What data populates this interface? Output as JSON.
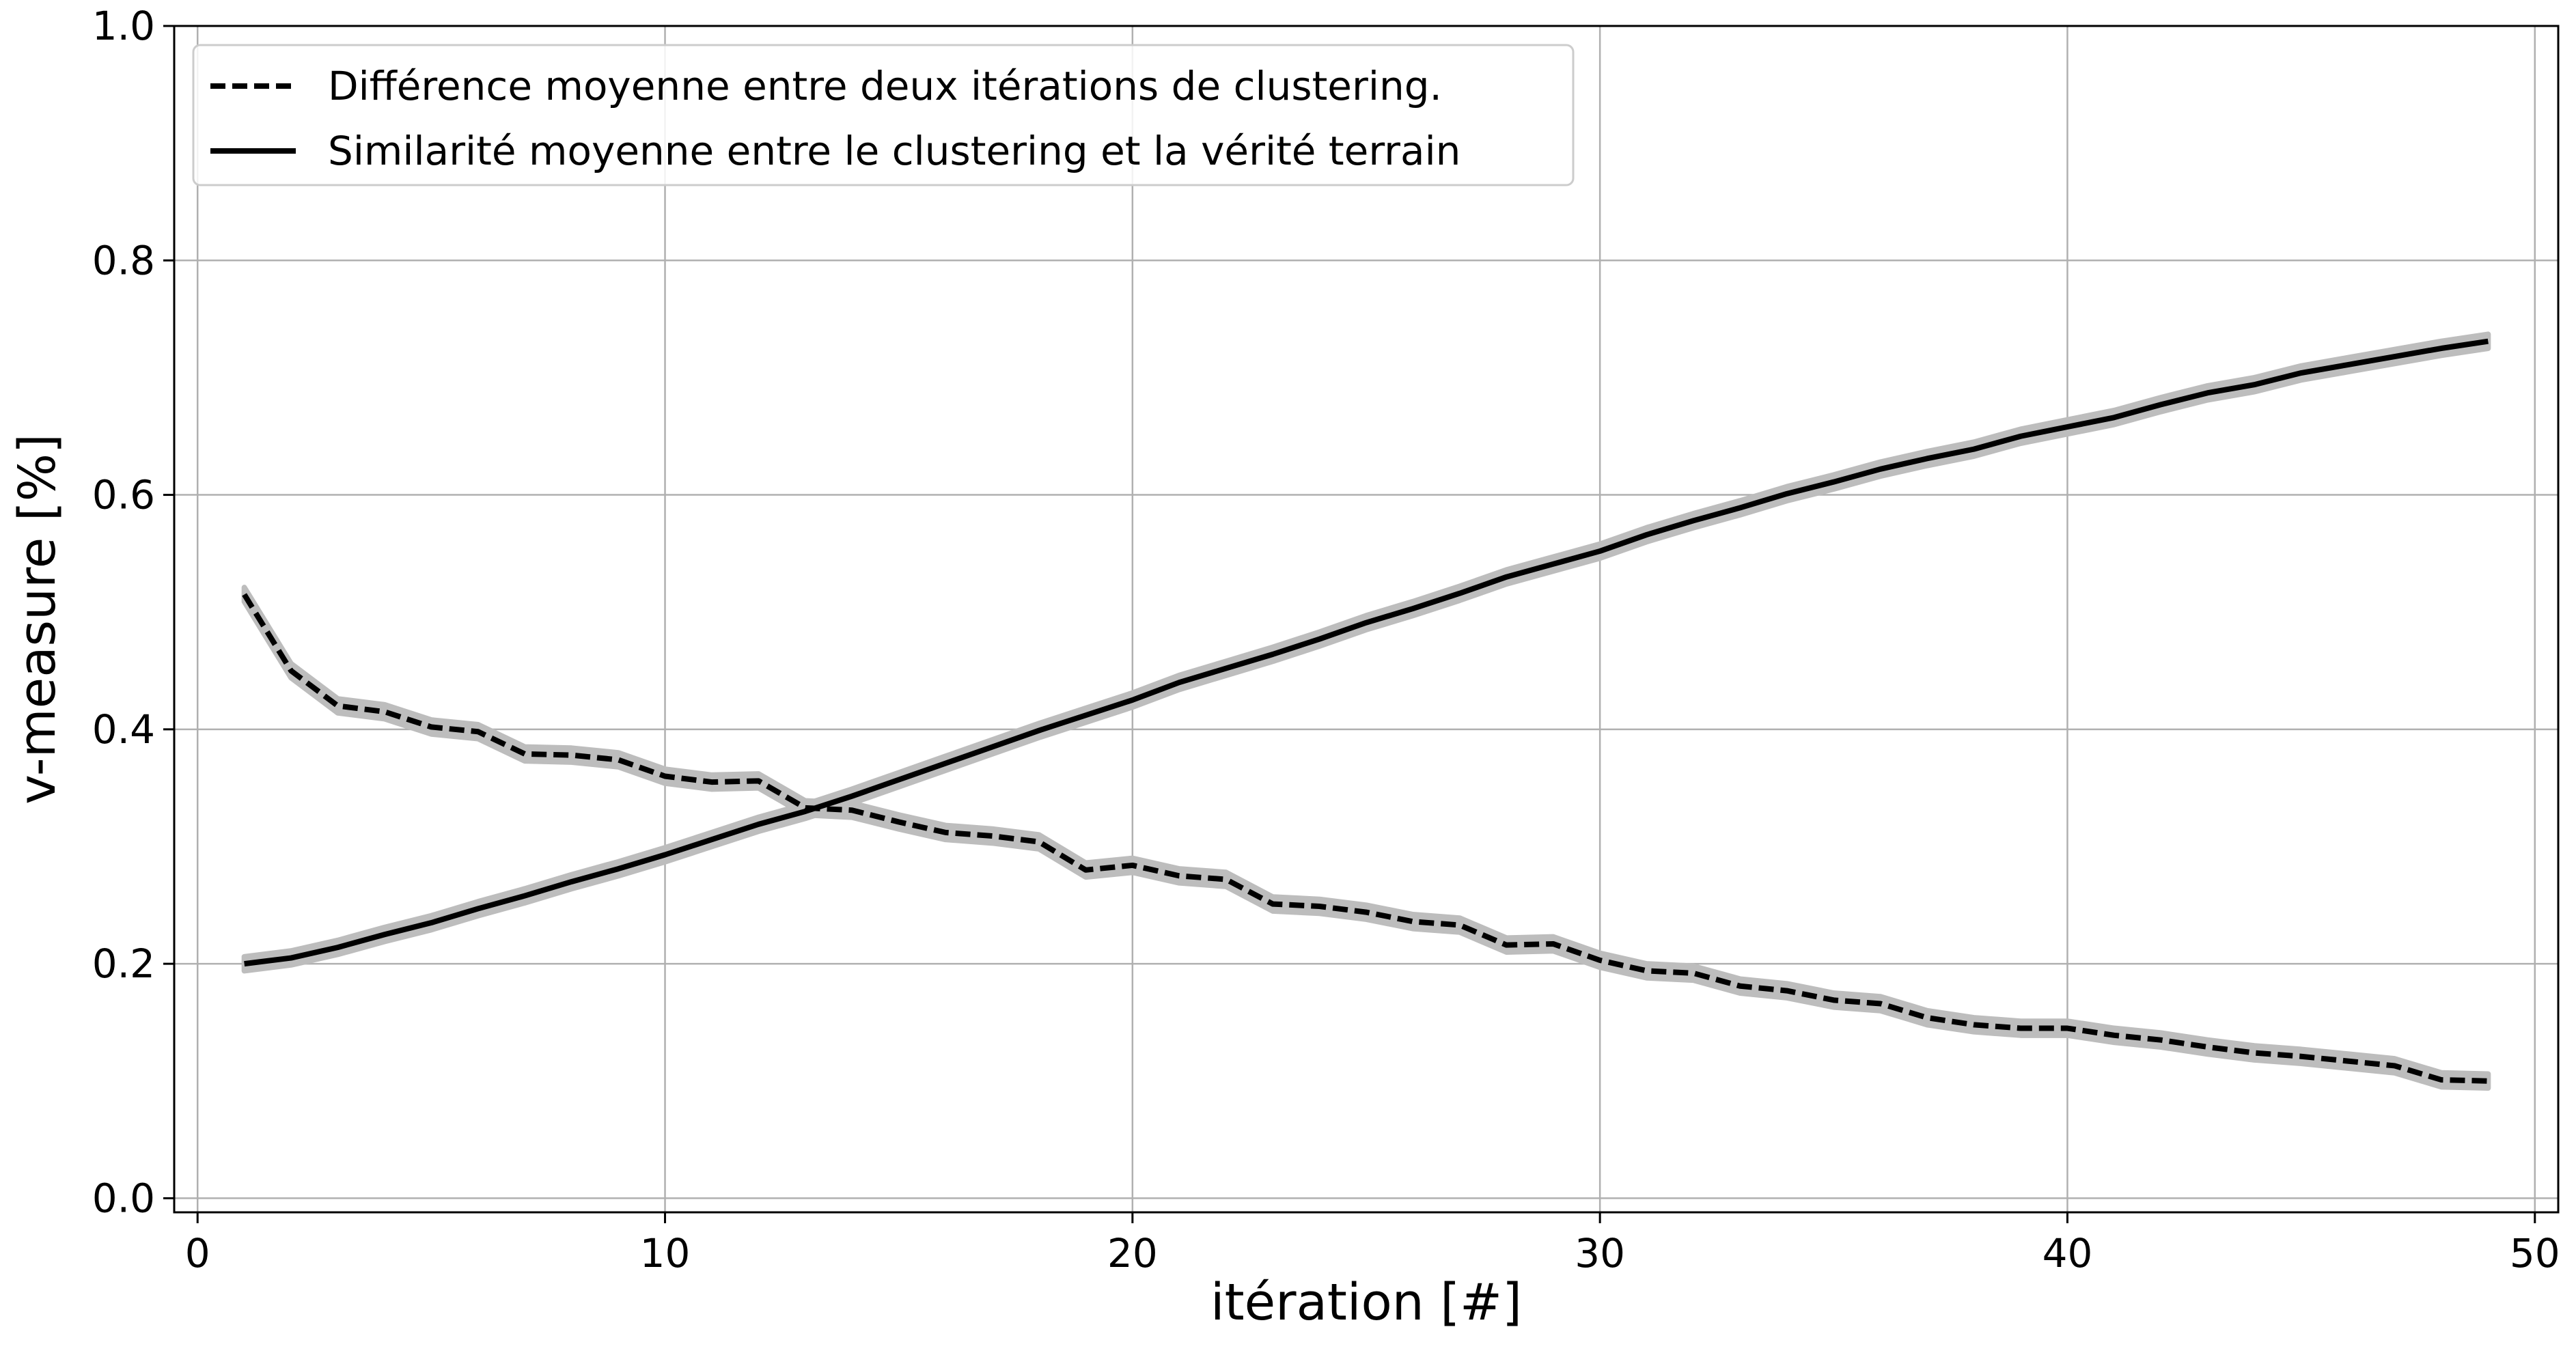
{
  "chart_data": {
    "type": "line",
    "title": "",
    "xlabel": "itération [#]",
    "ylabel": "v-measure [%]",
    "xlim": [
      -0.5,
      50.5
    ],
    "ylim": [
      -0.012,
      1.0
    ],
    "xticks": [
      0,
      10,
      20,
      30,
      40,
      50
    ],
    "xtick_labels": [
      "0",
      "10",
      "20",
      "30",
      "40",
      "50"
    ],
    "yticks": [
      0.0,
      0.2,
      0.4,
      0.6,
      0.8,
      1.0
    ],
    "ytick_labels": [
      "0.0",
      "0.2",
      "0.4",
      "0.6",
      "0.8",
      "1.0"
    ],
    "grid": true,
    "legend_position": "top-left",
    "colors": {
      "line": "#000000",
      "band": "#bdbdbd",
      "grid": "#b0b0b0"
    },
    "x": [
      1,
      2,
      3,
      4,
      5,
      6,
      7,
      8,
      9,
      10,
      11,
      12,
      13,
      14,
      15,
      16,
      17,
      18,
      19,
      20,
      21,
      22,
      23,
      24,
      25,
      26,
      27,
      28,
      29,
      30,
      31,
      32,
      33,
      34,
      35,
      36,
      37,
      38,
      39,
      40,
      41,
      42,
      43,
      44,
      45,
      46,
      47,
      48,
      49
    ],
    "series": [
      {
        "name": "Différence moyenne entre deux itérations de clustering.",
        "style": "dashed",
        "values": [
          0.515,
          0.45,
          0.42,
          0.415,
          0.402,
          0.398,
          0.379,
          0.378,
          0.374,
          0.36,
          0.355,
          0.356,
          0.333,
          0.331,
          0.321,
          0.312,
          0.309,
          0.304,
          0.28,
          0.284,
          0.275,
          0.272,
          0.251,
          0.249,
          0.244,
          0.236,
          0.233,
          0.216,
          0.217,
          0.203,
          0.194,
          0.192,
          0.181,
          0.177,
          0.169,
          0.166,
          0.154,
          0.148,
          0.145,
          0.145,
          0.139,
          0.135,
          0.129,
          0.124,
          0.121,
          0.117,
          0.113,
          0.101,
          0.1
        ],
        "band": 0.006
      },
      {
        "name": "Similarité moyenne entre le clustering et la vérité terrain",
        "style": "solid",
        "values": [
          0.2,
          0.205,
          0.214,
          0.225,
          0.235,
          0.247,
          0.258,
          0.27,
          0.281,
          0.293,
          0.306,
          0.319,
          0.33,
          0.343,
          0.357,
          0.371,
          0.385,
          0.399,
          0.412,
          0.425,
          0.44,
          0.452,
          0.464,
          0.477,
          0.491,
          0.503,
          0.516,
          0.53,
          0.541,
          0.552,
          0.566,
          0.578,
          0.589,
          0.601,
          0.611,
          0.622,
          0.631,
          0.639,
          0.65,
          0.658,
          0.666,
          0.677,
          0.687,
          0.694,
          0.704,
          0.711,
          0.718,
          0.725,
          0.731
        ],
        "band": 0.006
      }
    ]
  }
}
